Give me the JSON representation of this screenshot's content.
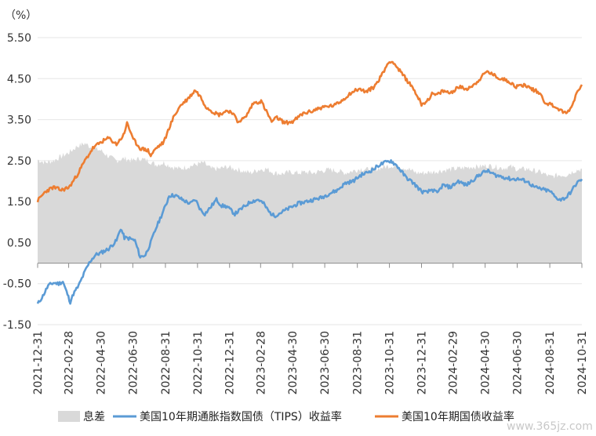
{
  "chart_data": {
    "type": "area+line",
    "unit_label": "（%）",
    "y_ticks": [
      "5.50",
      "4.50",
      "3.50",
      "2.50",
      "1.50",
      "0.50",
      "-0.50",
      "-1.50"
    ],
    "y_tick_values": [
      5.5,
      4.5,
      3.5,
      2.5,
      1.5,
      0.5,
      -0.5,
      -1.5
    ],
    "ylim": [
      -1.5,
      5.5
    ],
    "x_ticks": [
      "2021-12-31",
      "2022-02-28",
      "2022-04-30",
      "2022-06-30",
      "2022-08-31",
      "2022-10-31",
      "2022-12-31",
      "2023-02-28",
      "2023-04-30",
      "2023-06-30",
      "2023-08-31",
      "2023-10-31",
      "2023-12-31",
      "2024-02-29",
      "2024-04-30",
      "2024-06-30",
      "2024-08-31",
      "2024-10-31"
    ],
    "x_tick_days": [
      0,
      59,
      120,
      181,
      243,
      304,
      365,
      424,
      485,
      546,
      608,
      669,
      730,
      790,
      851,
      912,
      974,
      1035
    ],
    "legend": {
      "spread": "息差",
      "tips": "美国10年期通胀指数国债（TIPS）收益率",
      "nominal": "美国10年期国债收益率"
    },
    "colors": {
      "spread": "#d9d9d9",
      "tips": "#5b9bd5",
      "nominal": "#ed7d31"
    },
    "series": [
      {
        "name": "美国10年期国债收益率",
        "key": "nominal",
        "points": [
          [
            0,
            1.52
          ],
          [
            15,
            1.75
          ],
          [
            30,
            1.85
          ],
          [
            45,
            1.78
          ],
          [
            60,
            1.85
          ],
          [
            75,
            2.15
          ],
          [
            90,
            2.5
          ],
          [
            105,
            2.8
          ],
          [
            120,
            2.95
          ],
          [
            135,
            3.05
          ],
          [
            150,
            2.9
          ],
          [
            165,
            3.15
          ],
          [
            170,
            3.45
          ],
          [
            180,
            3.05
          ],
          [
            195,
            2.8
          ],
          [
            210,
            2.75
          ],
          [
            215,
            2.62
          ],
          [
            225,
            2.8
          ],
          [
            240,
            2.95
          ],
          [
            250,
            3.3
          ],
          [
            260,
            3.6
          ],
          [
            272,
            3.85
          ],
          [
            285,
            4.0
          ],
          [
            300,
            4.22
          ],
          [
            310,
            4.05
          ],
          [
            320,
            3.82
          ],
          [
            335,
            3.68
          ],
          [
            345,
            3.62
          ],
          [
            360,
            3.72
          ],
          [
            370,
            3.68
          ],
          [
            380,
            3.45
          ],
          [
            395,
            3.55
          ],
          [
            410,
            3.9
          ],
          [
            425,
            3.95
          ],
          [
            435,
            3.7
          ],
          [
            445,
            3.45
          ],
          [
            455,
            3.55
          ],
          [
            470,
            3.42
          ],
          [
            485,
            3.45
          ],
          [
            495,
            3.55
          ],
          [
            505,
            3.65
          ],
          [
            520,
            3.7
          ],
          [
            535,
            3.78
          ],
          [
            550,
            3.82
          ],
          [
            565,
            3.85
          ],
          [
            580,
            3.98
          ],
          [
            595,
            4.15
          ],
          [
            610,
            4.25
          ],
          [
            625,
            4.18
          ],
          [
            640,
            4.3
          ],
          [
            655,
            4.6
          ],
          [
            665,
            4.85
          ],
          [
            673,
            4.95
          ],
          [
            685,
            4.75
          ],
          [
            700,
            4.5
          ],
          [
            715,
            4.25
          ],
          [
            730,
            3.88
          ],
          [
            740,
            3.95
          ],
          [
            750,
            4.12
          ],
          [
            760,
            4.1
          ],
          [
            770,
            4.2
          ],
          [
            785,
            4.15
          ],
          [
            800,
            4.3
          ],
          [
            815,
            4.25
          ],
          [
            830,
            4.35
          ],
          [
            845,
            4.55
          ],
          [
            855,
            4.68
          ],
          [
            865,
            4.6
          ],
          [
            880,
            4.5
          ],
          [
            895,
            4.45
          ],
          [
            910,
            4.3
          ],
          [
            925,
            4.35
          ],
          [
            940,
            4.25
          ],
          [
            955,
            4.15
          ],
          [
            965,
            3.92
          ],
          [
            980,
            3.85
          ],
          [
            995,
            3.72
          ],
          [
            1005,
            3.65
          ],
          [
            1015,
            3.8
          ],
          [
            1025,
            4.15
          ],
          [
            1035,
            4.35
          ]
        ]
      },
      {
        "name": "美国10年期通胀指数国债（TIPS）收益率",
        "key": "tips",
        "points": [
          [
            0,
            -1.0
          ],
          [
            10,
            -0.8
          ],
          [
            20,
            -0.55
          ],
          [
            30,
            -0.48
          ],
          [
            40,
            -0.5
          ],
          [
            48,
            -0.45
          ],
          [
            55,
            -0.7
          ],
          [
            62,
            -0.95
          ],
          [
            68,
            -0.75
          ],
          [
            78,
            -0.55
          ],
          [
            90,
            -0.2
          ],
          [
            100,
            0.05
          ],
          [
            110,
            0.2
          ],
          [
            120,
            0.25
          ],
          [
            135,
            0.35
          ],
          [
            150,
            0.55
          ],
          [
            158,
            0.85
          ],
          [
            165,
            0.62
          ],
          [
            175,
            0.6
          ],
          [
            185,
            0.55
          ],
          [
            195,
            0.15
          ],
          [
            205,
            0.2
          ],
          [
            215,
            0.5
          ],
          [
            225,
            0.85
          ],
          [
            235,
            1.15
          ],
          [
            245,
            1.45
          ],
          [
            250,
            1.65
          ],
          [
            262,
            1.65
          ],
          [
            275,
            1.55
          ],
          [
            290,
            1.45
          ],
          [
            300,
            1.55
          ],
          [
            310,
            1.3
          ],
          [
            318,
            1.2
          ],
          [
            328,
            1.35
          ],
          [
            340,
            1.55
          ],
          [
            350,
            1.4
          ],
          [
            360,
            1.38
          ],
          [
            375,
            1.2
          ],
          [
            390,
            1.35
          ],
          [
            405,
            1.5
          ],
          [
            420,
            1.55
          ],
          [
            430,
            1.45
          ],
          [
            440,
            1.25
          ],
          [
            450,
            1.15
          ],
          [
            465,
            1.25
          ],
          [
            480,
            1.35
          ],
          [
            495,
            1.45
          ],
          [
            510,
            1.5
          ],
          [
            525,
            1.55
          ],
          [
            540,
            1.6
          ],
          [
            555,
            1.7
          ],
          [
            570,
            1.78
          ],
          [
            585,
            1.95
          ],
          [
            600,
            2.0
          ],
          [
            615,
            2.15
          ],
          [
            625,
            2.2
          ],
          [
            640,
            2.3
          ],
          [
            650,
            2.4
          ],
          [
            660,
            2.45
          ],
          [
            672,
            2.5
          ],
          [
            685,
            2.35
          ],
          [
            700,
            2.1
          ],
          [
            715,
            1.95
          ],
          [
            730,
            1.75
          ],
          [
            740,
            1.72
          ],
          [
            750,
            1.8
          ],
          [
            760,
            1.7
          ],
          [
            770,
            1.9
          ],
          [
            785,
            1.85
          ],
          [
            800,
            2.0
          ],
          [
            815,
            1.9
          ],
          [
            830,
            2.05
          ],
          [
            845,
            2.2
          ],
          [
            855,
            2.25
          ],
          [
            870,
            2.15
          ],
          [
            885,
            2.1
          ],
          [
            900,
            2.05
          ],
          [
            915,
            2.05
          ],
          [
            930,
            2.0
          ],
          [
            945,
            1.85
          ],
          [
            960,
            1.8
          ],
          [
            975,
            1.75
          ],
          [
            985,
            1.6
          ],
          [
            995,
            1.55
          ],
          [
            1005,
            1.6
          ],
          [
            1015,
            1.75
          ],
          [
            1025,
            1.95
          ],
          [
            1035,
            2.05
          ]
        ]
      },
      {
        "name": "息差",
        "key": "spread",
        "points": [
          [
            0,
            2.52
          ],
          [
            15,
            2.45
          ],
          [
            30,
            2.5
          ],
          [
            45,
            2.6
          ],
          [
            60,
            2.7
          ],
          [
            75,
            2.85
          ],
          [
            90,
            2.92
          ],
          [
            105,
            2.8
          ],
          [
            120,
            2.75
          ],
          [
            135,
            2.6
          ],
          [
            150,
            2.5
          ],
          [
            165,
            2.55
          ],
          [
            180,
            2.5
          ],
          [
            195,
            2.55
          ],
          [
            210,
            2.5
          ],
          [
            225,
            2.4
          ],
          [
            240,
            2.45
          ],
          [
            255,
            2.35
          ],
          [
            270,
            2.3
          ],
          [
            285,
            2.35
          ],
          [
            300,
            2.4
          ],
          [
            315,
            2.45
          ],
          [
            330,
            2.3
          ],
          [
            345,
            2.3
          ],
          [
            360,
            2.35
          ],
          [
            375,
            2.3
          ],
          [
            390,
            2.25
          ],
          [
            405,
            2.2
          ],
          [
            420,
            2.28
          ],
          [
            435,
            2.3
          ],
          [
            450,
            2.2
          ],
          [
            465,
            2.18
          ],
          [
            480,
            2.22
          ],
          [
            495,
            2.2
          ],
          [
            510,
            2.22
          ],
          [
            525,
            2.2
          ],
          [
            540,
            2.25
          ],
          [
            555,
            2.28
          ],
          [
            570,
            2.25
          ],
          [
            585,
            2.2
          ],
          [
            600,
            2.25
          ],
          [
            615,
            2.3
          ],
          [
            630,
            2.28
          ],
          [
            645,
            2.3
          ],
          [
            660,
            2.35
          ],
          [
            675,
            2.38
          ],
          [
            690,
            2.35
          ],
          [
            705,
            2.3
          ],
          [
            720,
            2.2
          ],
          [
            735,
            2.2
          ],
          [
            750,
            2.22
          ],
          [
            765,
            2.25
          ],
          [
            780,
            2.28
          ],
          [
            795,
            2.3
          ],
          [
            810,
            2.32
          ],
          [
            825,
            2.35
          ],
          [
            840,
            2.35
          ],
          [
            855,
            2.38
          ],
          [
            870,
            2.35
          ],
          [
            885,
            2.32
          ],
          [
            900,
            2.35
          ],
          [
            915,
            2.28
          ],
          [
            930,
            2.3
          ],
          [
            945,
            2.25
          ],
          [
            960,
            2.2
          ],
          [
            975,
            2.1
          ],
          [
            990,
            2.15
          ],
          [
            1005,
            2.15
          ],
          [
            1020,
            2.25
          ],
          [
            1035,
            2.3
          ]
        ]
      }
    ]
  },
  "watermark": "www.365jz.com"
}
